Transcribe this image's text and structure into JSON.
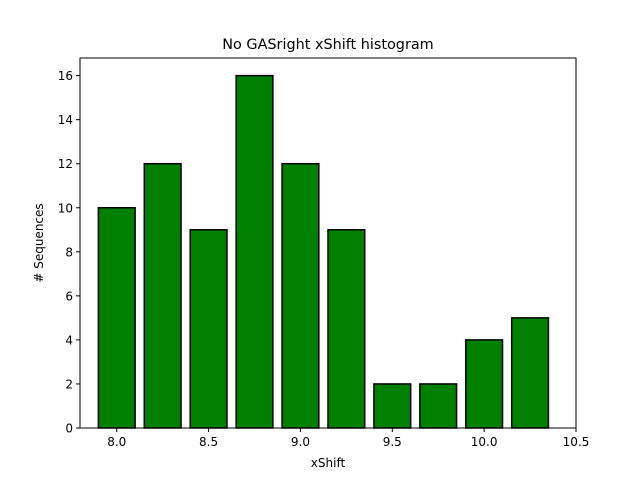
{
  "chart_data": {
    "type": "bar",
    "title": "No GASright xShift histogram",
    "xlabel": "xShift",
    "ylabel": "# Sequences",
    "x": [
      8.0,
      8.25,
      8.5,
      8.75,
      9.0,
      9.25,
      9.5,
      9.75,
      10.0,
      10.25
    ],
    "values": [
      10,
      12,
      9,
      16,
      12,
      9,
      2,
      2,
      4,
      5
    ],
    "bar_width": 0.2,
    "xlim": [
      7.8,
      10.5
    ],
    "ylim": [
      0,
      16.8
    ],
    "xticks": [
      8.0,
      8.5,
      9.0,
      9.5,
      10.0,
      10.5
    ],
    "xtick_labels": [
      "8.0",
      "8.5",
      "9.0",
      "9.5",
      "10.0",
      "10.5"
    ],
    "yticks": [
      0,
      2,
      4,
      6,
      8,
      10,
      12,
      14,
      16
    ],
    "ytick_labels": [
      "0",
      "2",
      "4",
      "6",
      "8",
      "10",
      "12",
      "14",
      "16"
    ],
    "grid": false,
    "bar_color": "#008000",
    "edge_color": "#000000"
  }
}
